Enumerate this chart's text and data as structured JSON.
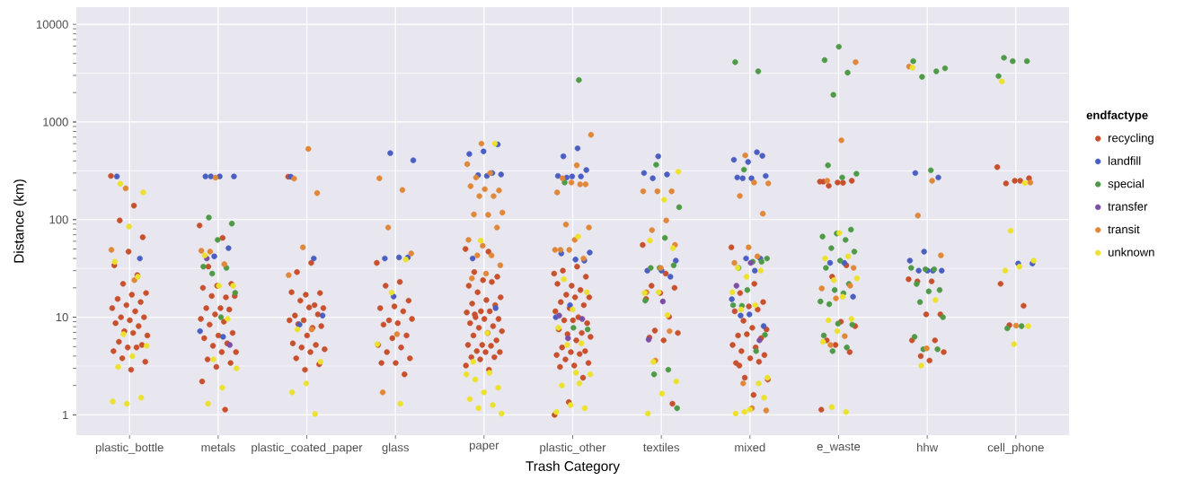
{
  "chart_data": {
    "type": "scatter",
    "xlabel": "Trash Category",
    "ylabel": "Distance (km)",
    "legend_title": "endfactype",
    "log": "y",
    "grid": true,
    "legend": "right",
    "marker": "circle",
    "categories": [
      "plastic_bottle",
      "metals",
      "plastic_coated_paper",
      "glass",
      "paper",
      "plastic_other",
      "textiles",
      "mixed",
      "e_waste",
      "hhw",
      "cell_phone"
    ],
    "ylim": [
      0.62,
      15000
    ],
    "yticks": [
      1,
      {
        "value": 3.162,
        "label": null
      },
      10,
      {
        "value": 31.62,
        "label": null
      },
      100,
      {
        "value": 316.2,
        "label": null
      },
      1000,
      {
        "value": 3162,
        "label": null
      },
      10000
    ],
    "series": [
      {
        "name": "recycling",
        "color": "#c8502c",
        "x": [
          "plastic_bottle",
          "plastic_bottle",
          "plastic_bottle",
          "plastic_bottle",
          "plastic_bottle",
          "plastic_bottle",
          "plastic_bottle",
          "plastic_bottle",
          "plastic_bottle",
          "plastic_bottle",
          "plastic_bottle",
          "plastic_bottle",
          "plastic_bottle",
          "plastic_bottle",
          "plastic_bottle",
          "plastic_bottle",
          "plastic_bottle",
          "plastic_bottle",
          "plastic_bottle",
          "plastic_bottle",
          "plastic_bottle",
          "plastic_bottle",
          "plastic_bottle",
          "plastic_bottle",
          "plastic_bottle",
          "plastic_bottle",
          "plastic_bottle",
          "plastic_bottle",
          "plastic_bottle",
          "plastic_bottle",
          "plastic_bottle",
          "metals",
          "metals",
          "metals",
          "metals",
          "metals",
          "metals",
          "metals",
          "metals",
          "metals",
          "metals",
          "metals",
          "metals",
          "metals",
          "metals",
          "metals",
          "metals",
          "metals",
          "metals",
          "metals",
          "metals",
          "metals",
          "metals",
          "metals",
          "metals",
          "metals",
          "metals",
          "metals",
          "metals",
          "plastic_coated_paper",
          "plastic_coated_paper",
          "plastic_coated_paper",
          "plastic_coated_paper",
          "plastic_coated_paper",
          "plastic_coated_paper",
          "plastic_coated_paper",
          "plastic_coated_paper",
          "plastic_coated_paper",
          "plastic_coated_paper",
          "plastic_coated_paper",
          "plastic_coated_paper",
          "plastic_coated_paper",
          "plastic_coated_paper",
          "plastic_coated_paper",
          "plastic_coated_paper",
          "plastic_coated_paper",
          "plastic_coated_paper",
          "plastic_coated_paper",
          "plastic_coated_paper",
          "plastic_coated_paper",
          "plastic_coated_paper",
          "plastic_coated_paper",
          "plastic_coated_paper",
          "plastic_coated_paper",
          "plastic_coated_paper",
          "glass",
          "glass",
          "glass",
          "glass",
          "glass",
          "glass",
          "glass",
          "glass",
          "glass",
          "glass",
          "glass",
          "glass",
          "glass",
          "glass",
          "glass",
          "glass",
          "glass",
          "glass",
          "glass",
          "glass",
          "paper",
          "paper",
          "paper",
          "paper",
          "paper",
          "paper",
          "paper",
          "paper",
          "paper",
          "paper",
          "paper",
          "paper",
          "paper",
          "paper",
          "paper",
          "paper",
          "paper",
          "paper",
          "paper",
          "paper",
          "paper",
          "paper",
          "paper",
          "paper",
          "paper",
          "paper",
          "paper",
          "paper",
          "paper",
          "paper",
          "paper",
          "paper",
          "paper",
          "paper",
          "paper",
          "paper",
          "paper",
          "plastic_other",
          "plastic_other",
          "plastic_other",
          "plastic_other",
          "plastic_other",
          "plastic_other",
          "plastic_other",
          "plastic_other",
          "plastic_other",
          "plastic_other",
          "plastic_other",
          "plastic_other",
          "plastic_other",
          "plastic_other",
          "plastic_other",
          "plastic_other",
          "plastic_other",
          "plastic_other",
          "plastic_other",
          "plastic_other",
          "plastic_other",
          "plastic_other",
          "plastic_other",
          "plastic_other",
          "plastic_other",
          "plastic_other",
          "plastic_other",
          "plastic_other",
          "plastic_other",
          "plastic_other",
          "plastic_other",
          "plastic_other",
          "plastic_other",
          "plastic_other",
          "plastic_other",
          "textiles",
          "textiles",
          "textiles",
          "textiles",
          "textiles",
          "textiles",
          "textiles",
          "textiles",
          "textiles",
          "textiles",
          "textiles",
          "textiles",
          "mixed",
          "mixed",
          "mixed",
          "mixed",
          "mixed",
          "mixed",
          "mixed",
          "mixed",
          "mixed",
          "mixed",
          "mixed",
          "mixed",
          "mixed",
          "mixed",
          "mixed",
          "mixed",
          "mixed",
          "mixed",
          "mixed",
          "mixed",
          "mixed",
          "mixed",
          "mixed",
          "mixed",
          "e_waste",
          "e_waste",
          "e_waste",
          "e_waste",
          "e_waste",
          "e_waste",
          "e_waste",
          "e_waste",
          "e_waste",
          "e_waste",
          "e_waste",
          "e_waste",
          "e_waste",
          "e_waste",
          "hhw",
          "hhw",
          "hhw",
          "hhw",
          "hhw",
          "hhw",
          "hhw",
          "hhw",
          "hhw",
          "hhw",
          "cell_phone",
          "cell_phone",
          "cell_phone",
          "cell_phone",
          "cell_phone",
          "cell_phone",
          "cell_phone",
          "cell_phone"
        ],
        "values": [
          280,
          139,
          98,
          66,
          47,
          34,
          27,
          22,
          17.7,
          17,
          15.4,
          14.3,
          13.3,
          12.4,
          11.5,
          10,
          10,
          9.3,
          8.7,
          8.1,
          7.2,
          6.5,
          6.9,
          5.6,
          5.2,
          4.9,
          4.5,
          4.9,
          3.8,
          3.5,
          2.9,
          87,
          65,
          33,
          22,
          21,
          20,
          16,
          16.5,
          16.5,
          12.4,
          12.4,
          12,
          10.7,
          9.6,
          9,
          8.4,
          6.9,
          6.5,
          6.1,
          5.4,
          5.1,
          4.4,
          4.4,
          3.7,
          3.4,
          3.1,
          2.2,
          1.13,
          275,
          36,
          29,
          17.7,
          17,
          18,
          13.3,
          14.8,
          12.4,
          12.6,
          10.4,
          10.7,
          9.3,
          9.3,
          7.8,
          8.5,
          8.1,
          6.5,
          5.4,
          5.2,
          4.9,
          4.7,
          4.4,
          3.8,
          3.3,
          2.9,
          36,
          23,
          21,
          14.8,
          12.9,
          12.4,
          11.5,
          9.3,
          9.6,
          8.7,
          8.4,
          6.5,
          6.1,
          5.2,
          4.9,
          4.4,
          3.8,
          3.4,
          3.4,
          2.6,
          50,
          47,
          29,
          26,
          24,
          21,
          23,
          18,
          16,
          15,
          13.8,
          13.3,
          11.5,
          11.2,
          11.5,
          10,
          9.6,
          9.6,
          8.7,
          8.1,
          7.8,
          7.2,
          6.9,
          6.5,
          5.8,
          5.2,
          5.2,
          5.1,
          4.5,
          4.4,
          4.4,
          3.9,
          3.9,
          3.7,
          3.2,
          2.9,
          10.7,
          28,
          33,
          30,
          26,
          21,
          22,
          19,
          17,
          16,
          16,
          14.3,
          13.3,
          12.4,
          11.5,
          10,
          9.3,
          8.7,
          9.3,
          7.5,
          6.9,
          6.7,
          6.3,
          5.8,
          4.9,
          4.5,
          4.4,
          4.1,
          4.2,
          3.7,
          3.4,
          3.2,
          3.1,
          2.4,
          1.35,
          1.0,
          55,
          28,
          21,
          20,
          17.7,
          15.4,
          10.1,
          7.3,
          6.9,
          5.8,
          6.2,
          1.3,
          52,
          22,
          17.7,
          14.3,
          12.9,
          11.5,
          12,
          9.2,
          7.5,
          7.8,
          6.5,
          6.1,
          6.7,
          5.2,
          4.9,
          4.5,
          4.1,
          3.8,
          3.4,
          3.5,
          2.4,
          2.3,
          1.6,
          3.2,
          245,
          238,
          222,
          250,
          240,
          245,
          34,
          26,
          8.1,
          9,
          5.8,
          4.4,
          5.2,
          1.13,
          24.5,
          23.3,
          23.3,
          10.7,
          10.7,
          5.8,
          5.8,
          4,
          4.4,
          3.6,
          345,
          250,
          235,
          265,
          250,
          22,
          13.1,
          8.3
        ]
      },
      {
        "name": "landfill",
        "color": "#4a5fc1",
        "x": [
          "plastic_bottle",
          "plastic_bottle",
          "metals",
          "metals",
          "metals",
          "metals",
          "metals",
          "metals",
          "metals",
          "metals",
          "plastic_coated_paper",
          "plastic_coated_paper",
          "plastic_coated_paper",
          "plastic_coated_paper",
          "glass",
          "glass",
          "glass",
          "glass",
          "glass",
          "glass",
          "paper",
          "paper",
          "paper",
          "paper",
          "paper",
          "paper",
          "paper",
          "paper",
          "paper",
          "plastic_other",
          "plastic_other",
          "plastic_other",
          "plastic_other",
          "plastic_other",
          "plastic_other",
          "plastic_other",
          "plastic_other",
          "plastic_other",
          "plastic_other",
          "plastic_other",
          "plastic_other",
          "plastic_other",
          "textiles",
          "textiles",
          "textiles",
          "textiles",
          "textiles",
          "textiles",
          "textiles",
          "textiles",
          "mixed",
          "mixed",
          "mixed",
          "mixed",
          "mixed",
          "mixed",
          "mixed",
          "mixed",
          "mixed",
          "mixed",
          "mixed",
          "mixed",
          "mixed",
          "mixed",
          "mixed",
          "e_waste",
          "e_waste",
          "e_waste",
          "hhw",
          "hhw",
          "hhw",
          "hhw",
          "hhw",
          "hhw",
          "hhw",
          "hhw",
          "cell_phone",
          "cell_phone"
        ],
        "values": [
          277,
          40,
          277,
          277,
          277,
          277,
          51,
          42,
          7.2,
          6.3,
          275,
          40,
          8.4,
          10.4,
          480,
          405,
          41,
          40,
          41,
          16.3,
          590,
          500,
          470,
          300,
          285,
          290,
          280,
          40,
          12.4,
          537,
          445,
          322,
          277,
          280,
          277,
          270,
          46,
          39,
          45,
          38,
          13.3,
          10,
          445,
          300,
          290,
          265,
          38,
          30,
          30,
          26,
          450,
          390,
          410,
          490,
          265,
          280,
          265,
          270,
          40,
          40,
          15.3,
          30,
          10.4,
          8.1,
          10.7,
          36,
          36,
          16.2,
          300,
          270,
          47,
          38,
          30,
          30,
          30,
          30,
          35.5,
          35.5
        ]
      },
      {
        "name": "special",
        "color": "#4f9a46",
        "x": [
          "metals",
          "metals",
          "metals",
          "metals",
          "metals",
          "metals",
          "metals",
          "metals",
          "plastic_other",
          "plastic_other",
          "plastic_other",
          "plastic_other",
          "textiles",
          "textiles",
          "textiles",
          "textiles",
          "textiles",
          "textiles",
          "textiles",
          "textiles",
          "textiles",
          "textiles",
          "mixed",
          "mixed",
          "mixed",
          "mixed",
          "mixed",
          "mixed",
          "mixed",
          "mixed",
          "mixed",
          "mixed",
          "mixed",
          "mixed",
          "e_waste",
          "e_waste",
          "e_waste",
          "e_waste",
          "e_waste",
          "e_waste",
          "e_waste",
          "e_waste",
          "e_waste",
          "e_waste",
          "e_waste",
          "e_waste",
          "e_waste",
          "e_waste",
          "e_waste",
          "e_waste",
          "e_waste",
          "e_waste",
          "e_waste",
          "e_waste",
          "e_waste",
          "e_waste",
          "e_waste",
          "e_waste",
          "e_waste",
          "hhw",
          "hhw",
          "hhw",
          "hhw",
          "hhw",
          "hhw",
          "hhw",
          "hhw",
          "hhw",
          "hhw",
          "hhw",
          "hhw",
          "hhw",
          "hhw",
          "hhw",
          "hhw",
          "cell_phone",
          "cell_phone",
          "cell_phone",
          "cell_phone",
          "cell_phone",
          "cell_phone"
        ],
        "values": [
          105,
          91,
          62,
          33,
          32,
          28,
          17.8,
          10,
          2690,
          240,
          7.5,
          7.8,
          365,
          134,
          65,
          32,
          34,
          32,
          14.8,
          2.9,
          2.6,
          1.17,
          4100,
          3300,
          325,
          40,
          37,
          32,
          37,
          19,
          13.3,
          4.5,
          13.1,
          6.6,
          5900,
          4300,
          3200,
          1900,
          295,
          270,
          360,
          79,
          72,
          67,
          62,
          51,
          47,
          38,
          32,
          21.9,
          19,
          14.5,
          17.6,
          13.6,
          8.4,
          8.6,
          6.5,
          4.9,
          4.5,
          4200,
          3300,
          2900,
          3550,
          320,
          21.9,
          19,
          31,
          32,
          31,
          14.3,
          10,
          18.4,
          6.3,
          4.7,
          4.7,
          4550,
          4200,
          4200,
          2950,
          8.1,
          7.7
        ]
      },
      {
        "name": "transfer",
        "color": "#7c4fa6",
        "x": [
          "metals",
          "metals",
          "plastic_other",
          "plastic_other",
          "plastic_other",
          "textiles",
          "textiles",
          "mixed",
          "mixed",
          "mixed"
        ],
        "values": [
          40,
          5.2,
          10.4,
          9.6,
          6.1,
          14.5,
          5.9,
          36,
          21,
          5.8
        ]
      },
      {
        "name": "transit",
        "color": "#e08838",
        "x": [
          "plastic_bottle",
          "plastic_bottle",
          "plastic_bottle",
          "metals",
          "metals",
          "metals",
          "metals",
          "plastic_coated_paper",
          "plastic_coated_paper",
          "plastic_coated_paper",
          "plastic_coated_paper",
          "plastic_coated_paper",
          "plastic_coated_paper",
          "glass",
          "glass",
          "glass",
          "glass",
          "glass",
          "glass",
          "paper",
          "paper",
          "paper",
          "paper",
          "paper",
          "paper",
          "paper",
          "paper",
          "paper",
          "paper",
          "paper",
          "paper",
          "paper",
          "paper",
          "paper",
          "paper",
          "paper",
          "paper",
          "paper",
          "paper",
          "plastic_other",
          "plastic_other",
          "plastic_other",
          "plastic_other",
          "plastic_other",
          "plastic_other",
          "plastic_other",
          "plastic_other",
          "plastic_other",
          "plastic_other",
          "plastic_other",
          "plastic_other",
          "plastic_other",
          "plastic_other",
          "textiles",
          "textiles",
          "textiles",
          "textiles",
          "textiles",
          "textiles",
          "textiles",
          "textiles",
          "textiles",
          "textiles",
          "mixed",
          "mixed",
          "mixed",
          "mixed",
          "mixed",
          "mixed",
          "mixed",
          "mixed",
          "mixed",
          "mixed",
          "mixed",
          "e_waste",
          "e_waste",
          "e_waste",
          "e_waste",
          "e_waste",
          "e_waste",
          "e_waste",
          "e_waste",
          "e_waste",
          "hhw",
          "hhw",
          "hhw",
          "hhw",
          "hhw",
          "cell_phone",
          "cell_phone"
        ],
        "values": [
          209,
          49,
          24,
          269,
          48,
          35,
          47,
          530,
          263,
          187,
          52,
          27,
          7.5,
          265,
          201,
          83,
          45,
          6.7,
          1.7,
          600,
          370,
          300,
          270,
          199,
          205,
          220,
          174,
          174,
          118,
          112,
          113,
          83,
          54,
          62,
          43,
          43,
          34,
          28,
          25,
          740,
          360,
          265,
          230,
          240,
          190,
          230,
          89,
          83,
          62,
          49,
          40,
          49,
          49,
          195,
          195,
          195,
          98,
          78,
          55,
          32,
          18,
          7.2,
          3.6,
          455,
          235,
          240,
          175,
          115,
          52,
          36,
          42,
          2.1,
          1.11,
          1.17,
          4100,
          650,
          250,
          21,
          15.6,
          19.7,
          6.4,
          5.2,
          32,
          3700,
          250,
          110,
          43,
          4.8,
          240,
          8.2
        ]
      },
      {
        "name": "unknown",
        "color": "#ece22e",
        "x": [
          "plastic_bottle",
          "plastic_bottle",
          "plastic_bottle",
          "plastic_bottle",
          "plastic_bottle",
          "plastic_bottle",
          "plastic_bottle",
          "plastic_bottle",
          "plastic_bottle",
          "plastic_bottle",
          "plastic_bottle",
          "plastic_bottle",
          "metals",
          "metals",
          "metals",
          "metals",
          "metals",
          "metals",
          "metals",
          "metals",
          "plastic_coated_paper",
          "plastic_coated_paper",
          "plastic_coated_paper",
          "plastic_coated_paper",
          "plastic_coated_paper",
          "glass",
          "glass",
          "glass",
          "glass",
          "paper",
          "paper",
          "paper",
          "paper",
          "paper",
          "paper",
          "paper",
          "paper",
          "paper",
          "paper",
          "paper",
          "paper",
          "paper",
          "plastic_other",
          "plastic_other",
          "plastic_other",
          "plastic_other",
          "plastic_other",
          "plastic_other",
          "plastic_other",
          "plastic_other",
          "plastic_other",
          "plastic_other",
          "plastic_other",
          "plastic_other",
          "plastic_other",
          "plastic_other",
          "textiles",
          "textiles",
          "textiles",
          "textiles",
          "textiles",
          "textiles",
          "textiles",
          "textiles",
          "textiles",
          "textiles",
          "textiles",
          "mixed",
          "mixed",
          "mixed",
          "mixed",
          "mixed",
          "mixed",
          "mixed",
          "mixed",
          "mixed",
          "mixed",
          "mixed",
          "mixed",
          "e_waste",
          "e_waste",
          "e_waste",
          "e_waste",
          "e_waste",
          "e_waste",
          "e_waste",
          "e_waste",
          "e_waste",
          "e_waste",
          "e_waste",
          "e_waste",
          "hhw",
          "hhw",
          "hhw",
          "cell_phone",
          "cell_phone",
          "cell_phone",
          "cell_phone",
          "cell_phone",
          "cell_phone",
          "cell_phone",
          "cell_phone"
        ],
        "values": [
          233,
          190,
          85,
          37,
          26,
          6.7,
          5.1,
          4,
          3.1,
          1.5,
          1.3,
          1.37,
          21,
          21,
          43,
          9.6,
          3.7,
          3.0,
          1.9,
          1.3,
          7.5,
          3.5,
          2.1,
          1.7,
          1.02,
          39,
          17.9,
          5.3,
          1.3,
          600,
          61,
          2.6,
          2.7,
          2.3,
          1.9,
          1.7,
          1.45,
          1.26,
          1.17,
          1.03,
          6.9,
          3.5,
          67,
          24.5,
          18,
          12,
          7.8,
          5.4,
          5.2,
          2.6,
          2.7,
          2,
          1.17,
          1.26,
          1.07,
          2.1,
          310,
          160,
          61,
          51,
          18,
          17.7,
          10.5,
          3.5,
          2.2,
          1.65,
          1.03,
          32,
          30,
          26,
          18,
          13.3,
          12,
          1.5,
          1.13,
          1.03,
          2.1,
          1.07,
          2.4,
          73,
          40,
          42,
          24,
          25,
          16.2,
          9.3,
          9.6,
          7.2,
          5.6,
          1.07,
          1.2,
          3600,
          15,
          3.2,
          2600,
          237,
          77,
          38,
          33,
          30,
          8.1,
          5.3
        ]
      }
    ]
  }
}
